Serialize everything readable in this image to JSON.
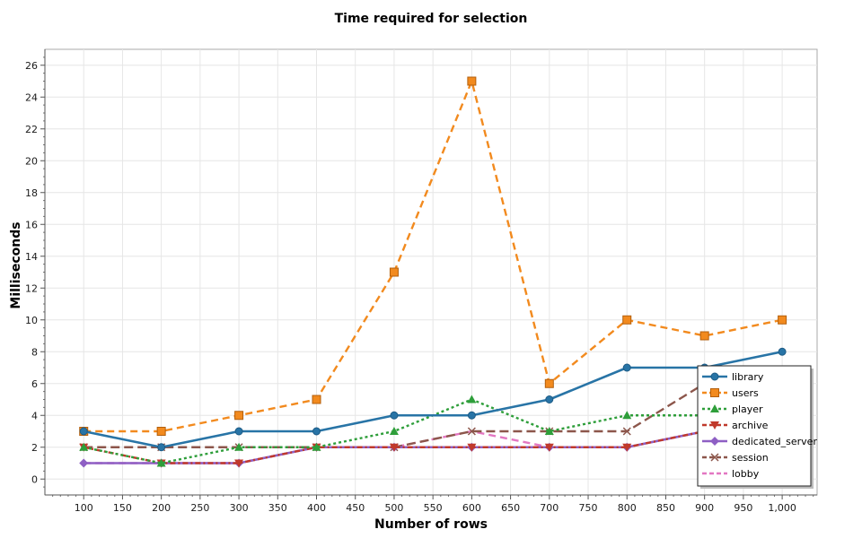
{
  "chart_data": {
    "type": "line",
    "title": "Time required for selection",
    "xlabel": "Number of rows",
    "ylabel": "Milliseconds",
    "x": [
      100,
      200,
      300,
      400,
      500,
      600,
      700,
      800,
      900,
      1000
    ],
    "x_ticks": [
      100,
      150,
      200,
      250,
      300,
      350,
      400,
      450,
      500,
      550,
      600,
      650,
      700,
      750,
      800,
      850,
      900,
      950,
      1000
    ],
    "x_tick_labels": [
      "100",
      "150",
      "200",
      "250",
      "300",
      "350",
      "400",
      "450",
      "500",
      "550",
      "600",
      "650",
      "700",
      "750",
      "800",
      "850",
      "900",
      "950",
      "1,000"
    ],
    "xlim": [
      50,
      1045
    ],
    "ylim": [
      -1,
      27
    ],
    "y_ticks": [
      0,
      2,
      4,
      6,
      8,
      10,
      12,
      14,
      16,
      18,
      20,
      22,
      24,
      26
    ],
    "grid": true,
    "legend_position": "bottom-right",
    "series": [
      {
        "name": "library",
        "color": "#2874a6",
        "dash": "solid",
        "marker": "circle",
        "values": [
          3,
          2,
          3,
          3,
          4,
          4,
          5,
          7,
          7,
          8
        ]
      },
      {
        "name": "users",
        "color": "#f28a1e",
        "dash": "dash",
        "marker": "square",
        "values": [
          3,
          3,
          4,
          5,
          13,
          25,
          6,
          10,
          9,
          10
        ]
      },
      {
        "name": "player",
        "color": "#2e9e3a",
        "dash": "dot",
        "marker": "triangle",
        "values": [
          2,
          1,
          2,
          2,
          3,
          5,
          3,
          4,
          4,
          4
        ]
      },
      {
        "name": "archive",
        "color": "#c0392b",
        "dash": "dashdot",
        "marker": "triangle-down",
        "values": [
          2,
          1,
          1,
          2,
          2,
          2,
          2,
          2,
          3,
          3
        ]
      },
      {
        "name": "dedicated_server",
        "color": "#8e5fc4",
        "dash": "solid",
        "marker": "diamond",
        "values": [
          1,
          1,
          1,
          2,
          2,
          2,
          2,
          2,
          3,
          3
        ]
      },
      {
        "name": "session",
        "color": "#8c564b",
        "dash": "longdash",
        "marker": "x",
        "values": [
          2,
          2,
          2,
          2,
          2,
          3,
          3,
          3,
          6,
          6
        ]
      },
      {
        "name": "lobby",
        "color": "#e377c2",
        "dash": "dash",
        "marker": "none",
        "values": [
          1,
          1,
          1,
          2,
          2,
          3,
          2,
          2,
          3,
          3
        ]
      }
    ]
  }
}
